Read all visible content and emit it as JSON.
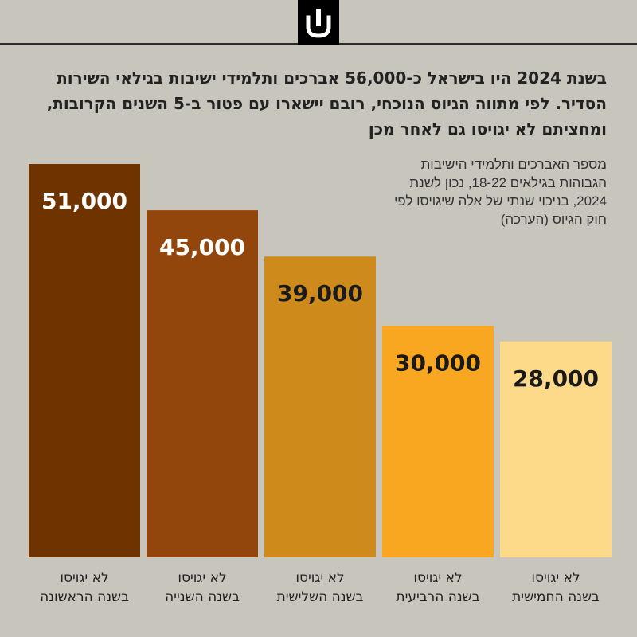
{
  "headline": "בשנת 2024 היו בישראל כ-56,000 אברכים ותלמידי ישיבות בגילאי השירות הסדיר. לפי מתווה הגיוס הנוכחי, רובם יישארו עם פטור ב-5 השנים הקרובות, ומחציתם לא יגויסו גם לאחר מכן",
  "note": "מספר האברכים ותלמידי הישיבות הגבוהות בגילאים 18-22, נכון לשנת 2024, בניכוי שנתי של אלה שיגויסו לפי חוק הגיוס (הערכה)",
  "logo": {
    "icon": "brand-logo-icon"
  },
  "chart_data": {
    "type": "bar",
    "categories": [
      {
        "line1": "לא יגויסו",
        "line2": "בשנה הראשונה"
      },
      {
        "line1": "לא יגויסו",
        "line2": "בשנה השנייה"
      },
      {
        "line1": "לא יגויסו",
        "line2": "בשנה השלישית"
      },
      {
        "line1": "לא יגויסו",
        "line2": "בשנה הרביעית"
      },
      {
        "line1": "לא יגויסו",
        "line2": "בשנה החמישית"
      }
    ],
    "values": [
      51000,
      45000,
      39000,
      30000,
      28000
    ],
    "value_labels": [
      "51,000",
      "45,000",
      "39,000",
      "30,000",
      "28,000"
    ],
    "colors": [
      "#6f3300",
      "#92460c",
      "#cf8a1c",
      "#f9a621",
      "#fdd98a"
    ],
    "label_colors": [
      "#ffffff",
      "#ffffff",
      "#1a1a1a",
      "#1a1a1a",
      "#1a1a1a"
    ],
    "ylim": [
      0,
      51000
    ],
    "grid": false,
    "legend": "none"
  }
}
